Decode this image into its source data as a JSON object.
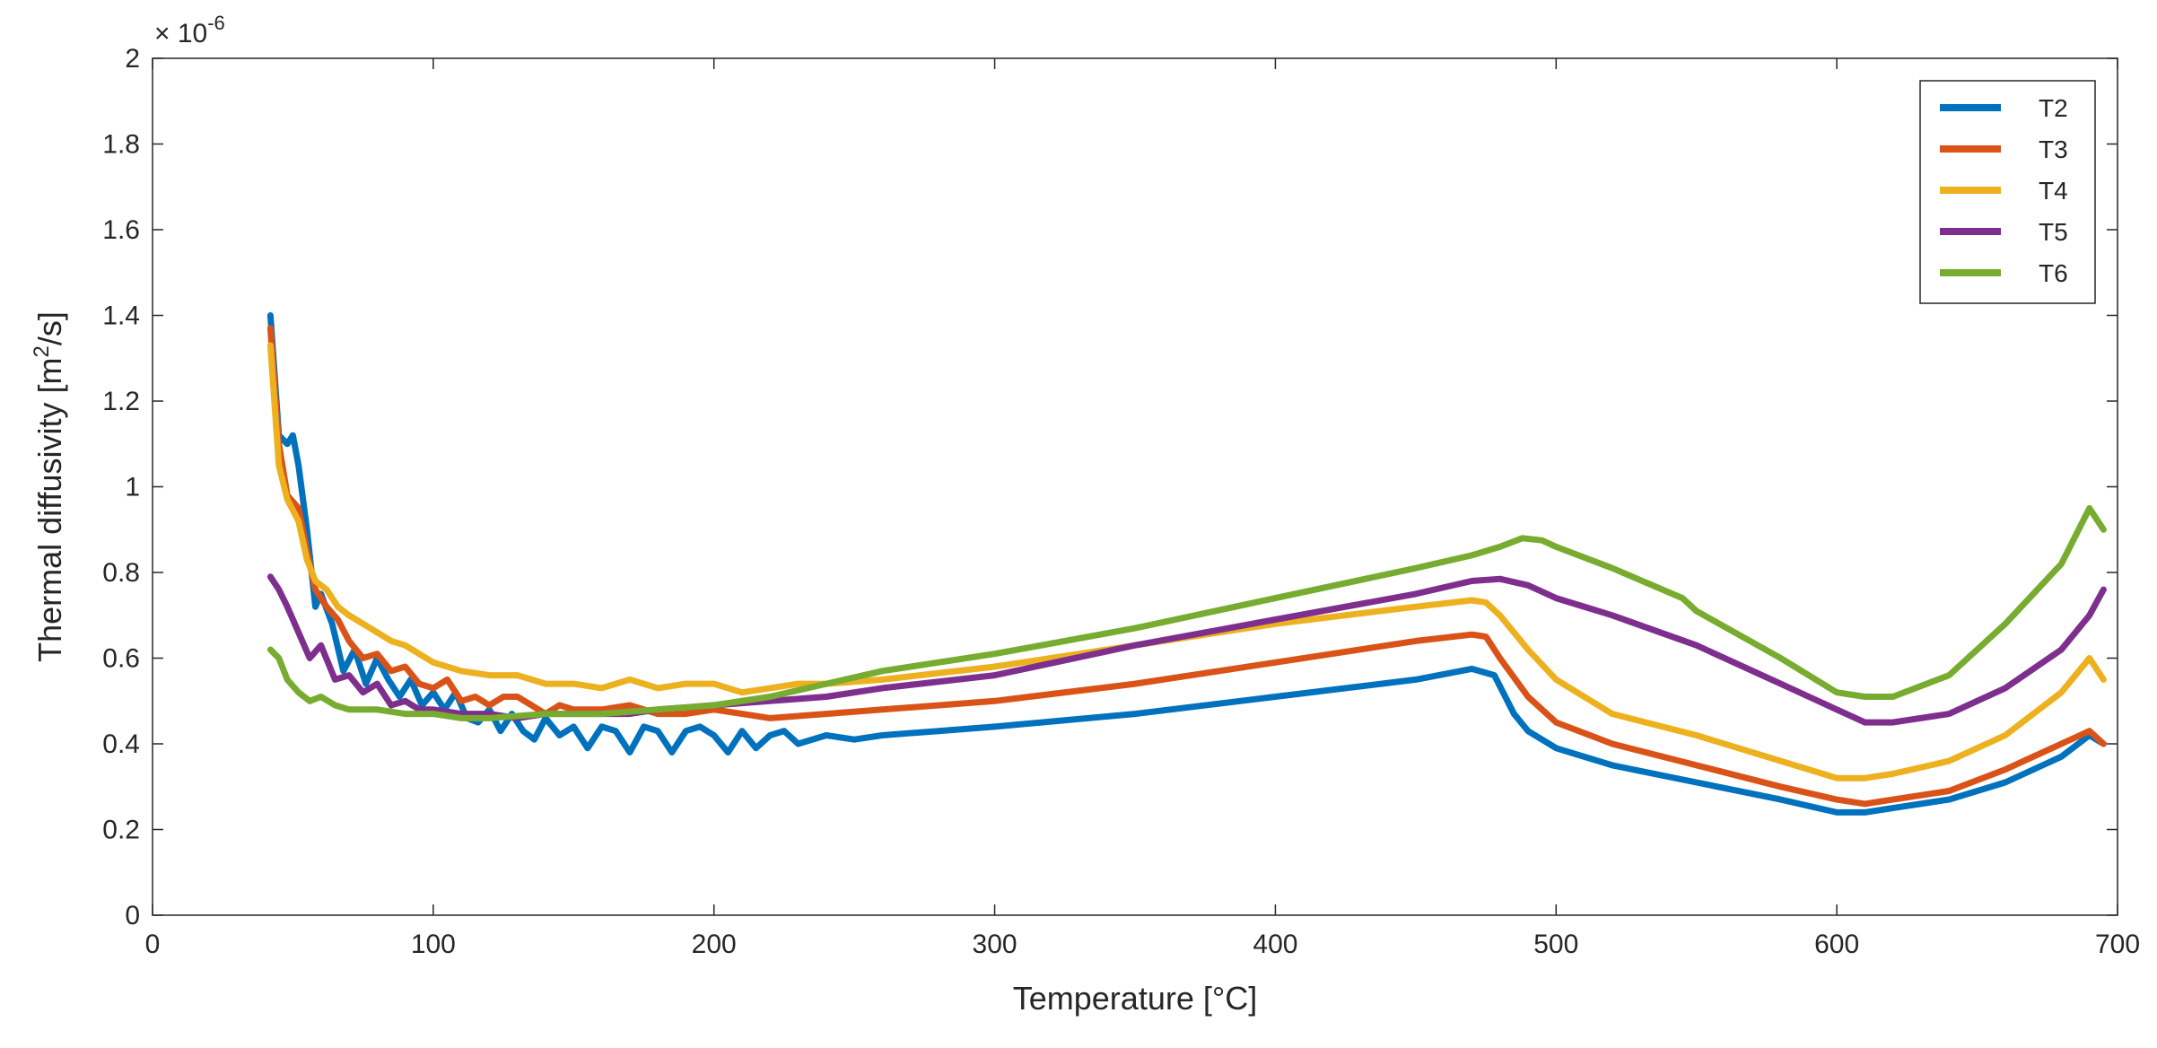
{
  "chart_data": {
    "type": "line",
    "title": "",
    "xlabel": "Temperature [°C]",
    "ylabel_main": "Thermal diffusivity [m",
    "ylabel_sup": "2",
    "ylabel_end": "/s]",
    "y_multiplier_base": "× 10",
    "y_multiplier_exp": "-6",
    "xlim": [
      0,
      700
    ],
    "ylim": [
      0,
      2
    ],
    "x_ticks": [
      0,
      100,
      200,
      300,
      400,
      500,
      600,
      700
    ],
    "x_tick_labels": [
      "0",
      "100",
      "200",
      "300",
      "400",
      "500",
      "600",
      "700"
    ],
    "y_ticks": [
      0,
      0.2,
      0.4,
      0.6,
      0.8,
      1,
      1.2,
      1.4,
      1.6,
      1.8,
      2
    ],
    "y_tick_labels": [
      "0",
      "0.2",
      "0.4",
      "0.6",
      "0.8",
      "1",
      "1.2",
      "1.4",
      "1.6",
      "1.8",
      "2"
    ],
    "legend_position": "top-right",
    "series": [
      {
        "name": "T2",
        "color": "#0072BD",
        "x": [
          42,
          45,
          48,
          50,
          52,
          55,
          58,
          60,
          64,
          68,
          72,
          76,
          80,
          84,
          88,
          92,
          96,
          100,
          104,
          108,
          112,
          116,
          120,
          124,
          128,
          132,
          136,
          140,
          145,
          150,
          155,
          160,
          165,
          170,
          175,
          180,
          185,
          190,
          195,
          200,
          205,
          210,
          215,
          220,
          225,
          230,
          240,
          250,
          260,
          280,
          300,
          350,
          400,
          450,
          470,
          478,
          485,
          490,
          500,
          520,
          550,
          580,
          600,
          610,
          620,
          640,
          660,
          680,
          690,
          695
        ],
        "y": [
          1.4,
          1.12,
          1.1,
          1.12,
          1.05,
          0.9,
          0.72,
          0.75,
          0.68,
          0.57,
          0.62,
          0.54,
          0.6,
          0.55,
          0.51,
          0.55,
          0.49,
          0.52,
          0.48,
          0.52,
          0.46,
          0.45,
          0.48,
          0.43,
          0.47,
          0.43,
          0.41,
          0.46,
          0.42,
          0.44,
          0.39,
          0.44,
          0.43,
          0.38,
          0.44,
          0.43,
          0.38,
          0.43,
          0.44,
          0.42,
          0.38,
          0.43,
          0.39,
          0.42,
          0.43,
          0.4,
          0.42,
          0.41,
          0.42,
          0.43,
          0.44,
          0.47,
          0.51,
          0.55,
          0.575,
          0.56,
          0.47,
          0.43,
          0.39,
          0.35,
          0.31,
          0.27,
          0.24,
          0.24,
          0.25,
          0.27,
          0.31,
          0.37,
          0.42,
          0.4
        ]
      },
      {
        "name": "T3",
        "color": "#D95319",
        "x": [
          42,
          45,
          48,
          52,
          55,
          58,
          62,
          66,
          70,
          75,
          80,
          85,
          90,
          95,
          100,
          105,
          110,
          115,
          120,
          125,
          130,
          135,
          140,
          145,
          150,
          160,
          170,
          180,
          190,
          200,
          210,
          220,
          240,
          260,
          300,
          350,
          400,
          450,
          470,
          475,
          480,
          490,
          500,
          520,
          550,
          580,
          600,
          610,
          620,
          640,
          660,
          680,
          690,
          695
        ],
        "y": [
          1.37,
          1.1,
          0.98,
          0.95,
          0.85,
          0.76,
          0.72,
          0.69,
          0.64,
          0.6,
          0.61,
          0.57,
          0.58,
          0.54,
          0.53,
          0.55,
          0.5,
          0.51,
          0.49,
          0.51,
          0.51,
          0.49,
          0.47,
          0.49,
          0.48,
          0.48,
          0.49,
          0.47,
          0.47,
          0.48,
          0.47,
          0.46,
          0.47,
          0.48,
          0.5,
          0.54,
          0.59,
          0.64,
          0.655,
          0.65,
          0.6,
          0.51,
          0.45,
          0.4,
          0.35,
          0.3,
          0.27,
          0.26,
          0.27,
          0.29,
          0.34,
          0.4,
          0.43,
          0.4
        ]
      },
      {
        "name": "T4",
        "color": "#EDB120",
        "x": [
          42,
          45,
          48,
          52,
          55,
          58,
          62,
          66,
          70,
          75,
          80,
          85,
          90,
          95,
          100,
          110,
          120,
          130,
          140,
          150,
          160,
          170,
          180,
          190,
          200,
          210,
          220,
          230,
          240,
          260,
          300,
          350,
          400,
          450,
          470,
          475,
          480,
          490,
          500,
          520,
          550,
          580,
          600,
          610,
          620,
          640,
          660,
          680,
          690,
          695
        ],
        "y": [
          1.33,
          1.05,
          0.97,
          0.92,
          0.83,
          0.78,
          0.76,
          0.72,
          0.7,
          0.68,
          0.66,
          0.64,
          0.63,
          0.61,
          0.59,
          0.57,
          0.56,
          0.56,
          0.54,
          0.54,
          0.53,
          0.55,
          0.53,
          0.54,
          0.54,
          0.52,
          0.53,
          0.54,
          0.54,
          0.55,
          0.58,
          0.63,
          0.68,
          0.72,
          0.735,
          0.73,
          0.7,
          0.62,
          0.55,
          0.47,
          0.42,
          0.36,
          0.32,
          0.32,
          0.33,
          0.36,
          0.42,
          0.52,
          0.6,
          0.55
        ]
      },
      {
        "name": "T5",
        "color": "#7E2F8E",
        "x": [
          42,
          45,
          48,
          52,
          56,
          60,
          65,
          70,
          75,
          80,
          85,
          90,
          95,
          100,
          110,
          120,
          130,
          140,
          150,
          160,
          170,
          180,
          200,
          220,
          240,
          260,
          300,
          350,
          400,
          450,
          470,
          480,
          490,
          500,
          520,
          550,
          580,
          600,
          610,
          620,
          640,
          660,
          680,
          690,
          695
        ],
        "y": [
          0.79,
          0.76,
          0.72,
          0.66,
          0.6,
          0.63,
          0.55,
          0.56,
          0.52,
          0.54,
          0.49,
          0.5,
          0.48,
          0.48,
          0.47,
          0.47,
          0.46,
          0.47,
          0.47,
          0.47,
          0.47,
          0.48,
          0.49,
          0.5,
          0.51,
          0.53,
          0.56,
          0.63,
          0.69,
          0.75,
          0.78,
          0.785,
          0.77,
          0.74,
          0.7,
          0.63,
          0.54,
          0.48,
          0.45,
          0.45,
          0.47,
          0.53,
          0.62,
          0.7,
          0.76
        ]
      },
      {
        "name": "T6",
        "color": "#77AC30",
        "x": [
          42,
          45,
          48,
          52,
          56,
          60,
          65,
          70,
          80,
          90,
          100,
          110,
          120,
          140,
          160,
          180,
          200,
          220,
          240,
          260,
          300,
          350,
          400,
          450,
          470,
          480,
          488,
          495,
          500,
          520,
          545,
          550,
          580,
          600,
          610,
          620,
          640,
          660,
          680,
          690,
          695
        ],
        "y": [
          0.62,
          0.6,
          0.55,
          0.52,
          0.5,
          0.51,
          0.49,
          0.48,
          0.48,
          0.47,
          0.47,
          0.46,
          0.46,
          0.47,
          0.47,
          0.48,
          0.49,
          0.51,
          0.54,
          0.57,
          0.61,
          0.67,
          0.74,
          0.81,
          0.84,
          0.86,
          0.88,
          0.875,
          0.86,
          0.81,
          0.74,
          0.71,
          0.6,
          0.52,
          0.51,
          0.51,
          0.56,
          0.68,
          0.82,
          0.95,
          0.9
        ]
      }
    ]
  }
}
